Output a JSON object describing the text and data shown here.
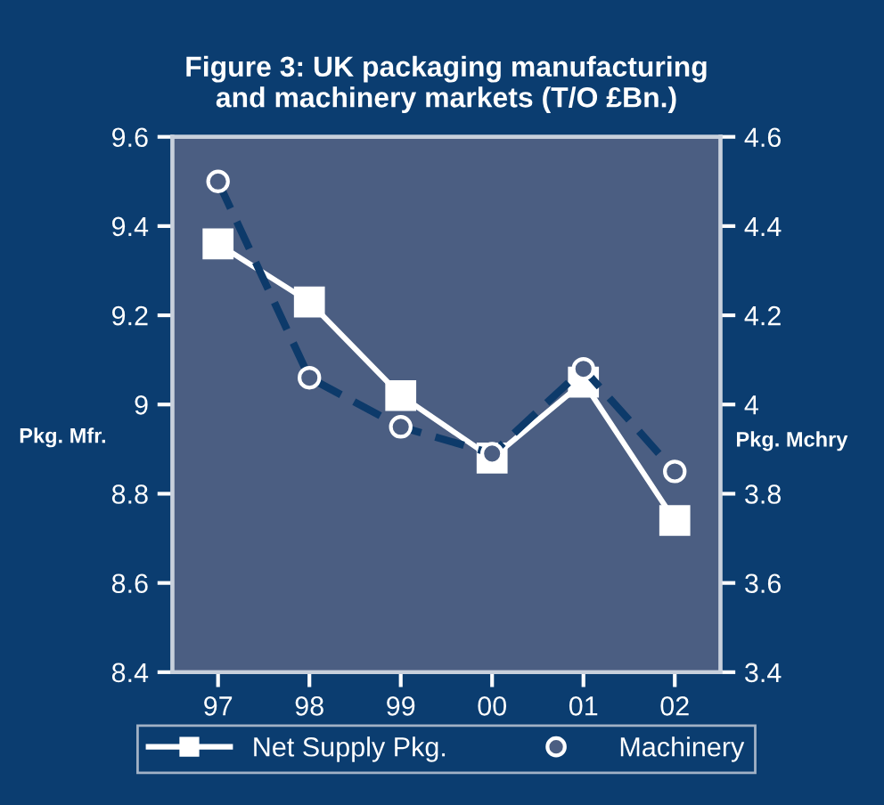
{
  "chart_data": {
    "type": "line",
    "title": "Figure 3: UK packaging manufacturing\nand machinery markets (T/O £Bn.)",
    "ylabel": "Pkg. Mfr.",
    "y2label": "Pkg. Mchry",
    "categories": [
      "97",
      "98",
      "99",
      "00",
      "01",
      "02"
    ],
    "series": [
      {
        "name": "Net Supply Pkg.",
        "color": "#ffffff",
        "marker": "square",
        "line_style": "solid",
        "values": [
          9.36,
          9.23,
          9.02,
          8.88,
          9.05,
          8.74
        ]
      },
      {
        "name": "Machinery",
        "color": "#0d3a6a",
        "marker": "circle",
        "line_style": "dashed",
        "axis": "y2",
        "values": [
          4.5,
          4.06,
          3.95,
          3.89,
          4.08,
          3.85
        ]
      }
    ],
    "ylim": [
      8.4,
      9.6
    ],
    "yticks": [
      8.4,
      8.6,
      8.8,
      9,
      9.2,
      9.4,
      9.6
    ],
    "y2lim": [
      3.4,
      4.6
    ],
    "y2ticks": [
      3.4,
      3.6,
      3.8,
      4,
      4.2,
      4.4,
      4.6
    ],
    "grid": false,
    "legend": "bottom"
  }
}
